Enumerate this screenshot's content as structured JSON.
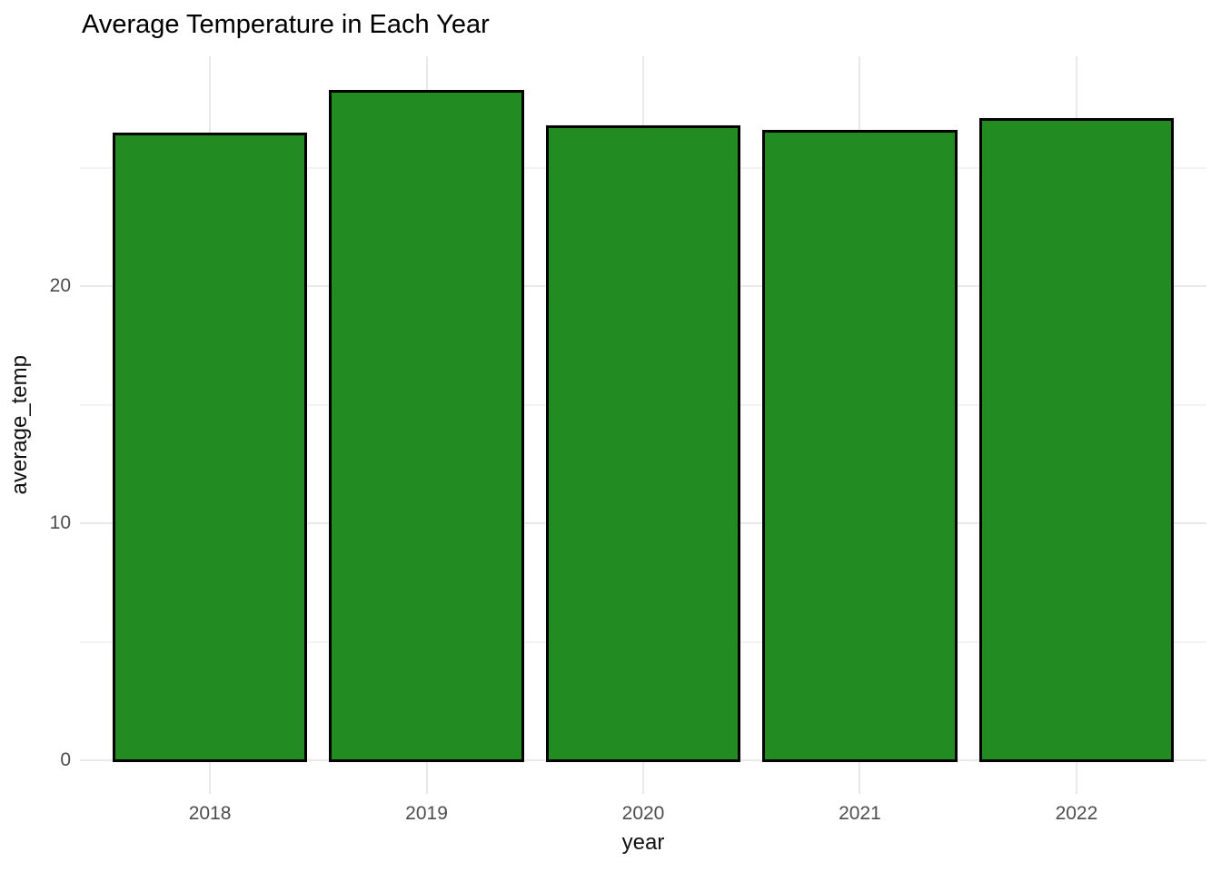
{
  "chart_data": {
    "type": "bar",
    "title": "Average Temperature in Each Year",
    "xlabel": "year",
    "ylabel": "average_temp",
    "categories": [
      "2018",
      "2019",
      "2020",
      "2021",
      "2022"
    ],
    "values": [
      26.5,
      28.3,
      26.8,
      26.6,
      27.1
    ],
    "y_ticks": [
      0,
      10,
      20
    ],
    "y_tick_labels": [
      "0",
      "10",
      "20"
    ],
    "y_minor_ticks": [
      5,
      15,
      25
    ],
    "ylim": [
      -1.42,
      29.72
    ],
    "grid": true,
    "legend_position": "none",
    "colors": {
      "bar_fill": "#228B22",
      "bar_stroke": "#000000",
      "grid_major": "#E9E9E9",
      "grid_minor": "#F3F3F3",
      "tick_label": "#4D4D4D",
      "axis_title": "#111111",
      "title": "#000000",
      "background": "#FFFFFF"
    }
  }
}
